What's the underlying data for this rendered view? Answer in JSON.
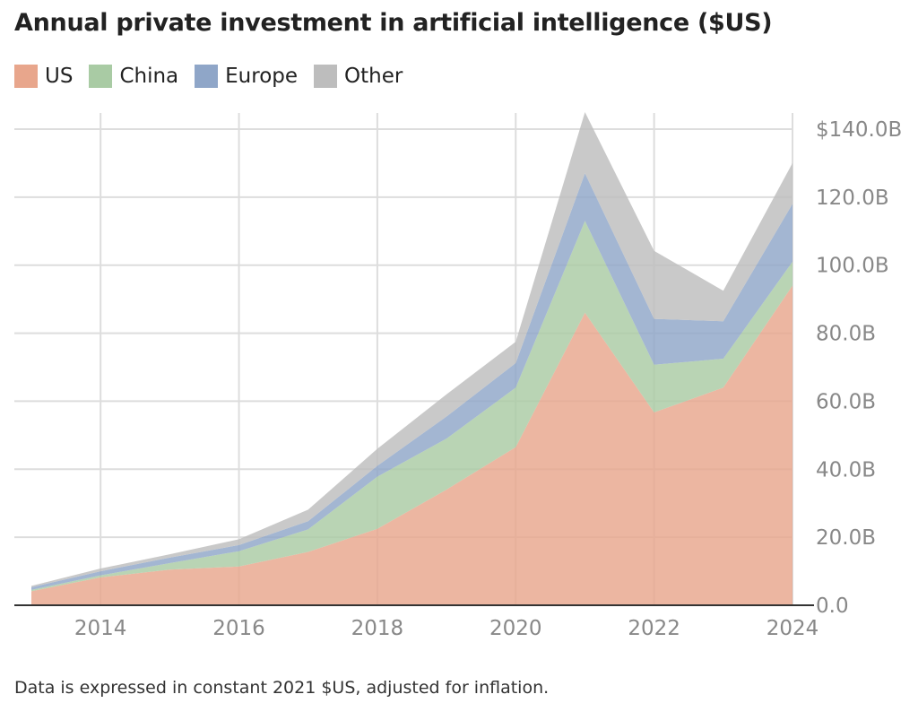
{
  "chart_data": {
    "type": "area",
    "stacked": true,
    "title": "Annual private investment in artificial intelligence ($US)",
    "footnote": "Data is expressed in constant 2021 $US, adjusted for inflation.",
    "x": [
      2013,
      2014,
      2015,
      2016,
      2017,
      2018,
      2019,
      2020,
      2021,
      2022,
      2023,
      2024
    ],
    "series": [
      {
        "name": "US",
        "color": "#e8a68c",
        "values": [
          4.1,
          8.2,
          10.5,
          11.4,
          15.7,
          22.5,
          34.0,
          46.5,
          86.0,
          56.7,
          64.0,
          94.0
        ]
      },
      {
        "name": "China",
        "color": "#a9cba4",
        "values": [
          0.4,
          0.6,
          1.9,
          4.5,
          6.6,
          15.3,
          15.0,
          17.5,
          27.0,
          14.0,
          8.5,
          7.0
        ]
      },
      {
        "name": "Europe",
        "color": "#8fa6c8",
        "values": [
          0.8,
          1.2,
          1.6,
          1.8,
          2.4,
          3.2,
          6.5,
          7.2,
          14.0,
          13.5,
          11.0,
          17.0
        ]
      },
      {
        "name": "Other",
        "color": "#bdbdbd",
        "values": [
          0.4,
          0.8,
          1.0,
          1.7,
          3.4,
          5.0,
          6.5,
          6.3,
          18.0,
          20.0,
          9.0,
          12.0
        ]
      }
    ],
    "x_ticks": [
      2014,
      2016,
      2018,
      2020,
      2022,
      2024
    ],
    "x_tick_labels": [
      "2014",
      "2016",
      "2018",
      "2020",
      "2022",
      "2024"
    ],
    "y_ticks": [
      0,
      20,
      40,
      60,
      80,
      100,
      120,
      140
    ],
    "y_tick_labels": [
      "0.0",
      "20.0B",
      "40.0B",
      "60.0B",
      "80.0B",
      "100.0B",
      "120.0B",
      "$140.0B"
    ],
    "xlim": [
      2013,
      2024
    ],
    "ylim": [
      0,
      140
    ],
    "y_axis_side": "right",
    "grid": true,
    "legend_position": "top-left"
  }
}
